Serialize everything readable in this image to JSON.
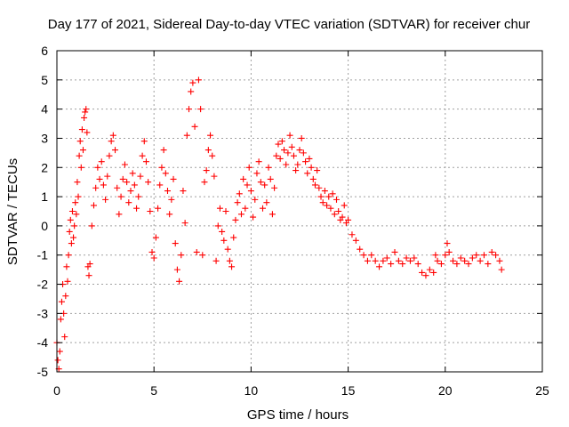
{
  "chart_data": {
    "type": "scatter",
    "title": "Day 177 of 2021, Sidereal Day-to-day VTEC variation (SDTVAR) for receiver chur",
    "xlabel": "GPS time / hours",
    "ylabel": "SDTVAR / TECUs",
    "xlim": [
      0,
      25
    ],
    "ylim": [
      -5,
      6
    ],
    "xticks": [
      "0",
      "5",
      "10",
      "15",
      "20",
      "25"
    ],
    "yticks": [
      "-5",
      "-4",
      "-3",
      "-2",
      "-1",
      "0",
      "1",
      "2",
      "3",
      "4",
      "5",
      "6"
    ],
    "grid": true,
    "marker": "+",
    "color": "#ff0000",
    "series": [
      {
        "name": "SDTVAR",
        "points": [
          [
            0.0,
            -4.0
          ],
          [
            0.05,
            -4.6
          ],
          [
            0.1,
            -4.9
          ],
          [
            0.15,
            -4.3
          ],
          [
            0.2,
            -3.2
          ],
          [
            0.25,
            -2.6
          ],
          [
            0.3,
            -2.0
          ],
          [
            0.35,
            -3.0
          ],
          [
            0.4,
            -3.8
          ],
          [
            0.45,
            -2.4
          ],
          [
            0.5,
            -1.4
          ],
          [
            0.55,
            -1.9
          ],
          [
            0.6,
            -1.0
          ],
          [
            0.65,
            -0.2
          ],
          [
            0.7,
            0.2
          ],
          [
            0.75,
            -0.6
          ],
          [
            0.8,
            0.5
          ],
          [
            0.85,
            -0.4
          ],
          [
            0.9,
            0.0
          ],
          [
            0.95,
            0.8
          ],
          [
            1.0,
            0.4
          ],
          [
            1.05,
            1.5
          ],
          [
            1.1,
            1.0
          ],
          [
            1.15,
            2.4
          ],
          [
            1.2,
            2.9
          ],
          [
            1.25,
            2.0
          ],
          [
            1.3,
            3.3
          ],
          [
            1.35,
            2.6
          ],
          [
            1.4,
            3.7
          ],
          [
            1.45,
            3.9
          ],
          [
            1.5,
            4.0
          ],
          [
            1.55,
            3.2
          ],
          [
            1.6,
            -1.4
          ],
          [
            1.65,
            -1.7
          ],
          [
            1.7,
            -1.3
          ],
          [
            1.8,
            0.0
          ],
          [
            1.9,
            0.7
          ],
          [
            2.0,
            1.3
          ],
          [
            2.1,
            2.0
          ],
          [
            2.2,
            1.6
          ],
          [
            2.3,
            2.2
          ],
          [
            2.4,
            1.4
          ],
          [
            2.5,
            0.9
          ],
          [
            2.6,
            1.7
          ],
          [
            2.7,
            2.4
          ],
          [
            2.8,
            2.9
          ],
          [
            2.9,
            3.1
          ],
          [
            3.0,
            2.6
          ],
          [
            3.1,
            1.3
          ],
          [
            3.2,
            0.4
          ],
          [
            3.3,
            1.0
          ],
          [
            3.4,
            1.6
          ],
          [
            3.5,
            2.1
          ],
          [
            3.6,
            1.5
          ],
          [
            3.7,
            0.8
          ],
          [
            3.8,
            1.2
          ],
          [
            3.9,
            1.8
          ],
          [
            4.0,
            1.4
          ],
          [
            4.1,
            0.6
          ],
          [
            4.2,
            1.0
          ],
          [
            4.3,
            1.7
          ],
          [
            4.4,
            2.4
          ],
          [
            4.5,
            2.9
          ],
          [
            4.6,
            2.2
          ],
          [
            4.7,
            1.5
          ],
          [
            4.8,
            0.5
          ],
          [
            4.9,
            -0.9
          ],
          [
            5.0,
            -1.1
          ],
          [
            5.1,
            -0.4
          ],
          [
            5.2,
            0.6
          ],
          [
            5.3,
            1.4
          ],
          [
            5.4,
            2.0
          ],
          [
            5.5,
            2.6
          ],
          [
            5.6,
            1.8
          ],
          [
            5.7,
            1.2
          ],
          [
            5.8,
            0.4
          ],
          [
            5.9,
            0.9
          ],
          [
            6.0,
            1.6
          ],
          [
            6.1,
            -0.6
          ],
          [
            6.2,
            -1.5
          ],
          [
            6.3,
            -1.9
          ],
          [
            6.4,
            -1.0
          ],
          [
            6.5,
            1.2
          ],
          [
            6.6,
            0.1
          ],
          [
            6.7,
            3.1
          ],
          [
            6.8,
            4.0
          ],
          [
            6.9,
            4.6
          ],
          [
            7.0,
            4.9
          ],
          [
            7.1,
            3.4
          ],
          [
            7.2,
            -0.9
          ],
          [
            7.3,
            5.0
          ],
          [
            7.4,
            4.0
          ],
          [
            7.5,
            -1.0
          ],
          [
            7.6,
            1.5
          ],
          [
            7.7,
            1.9
          ],
          [
            7.8,
            2.6
          ],
          [
            7.9,
            3.1
          ],
          [
            8.0,
            2.4
          ],
          [
            8.1,
            1.7
          ],
          [
            8.2,
            -1.2
          ],
          [
            8.3,
            0.0
          ],
          [
            8.4,
            0.6
          ],
          [
            8.5,
            -0.2
          ],
          [
            8.6,
            -0.5
          ],
          [
            8.7,
            0.5
          ],
          [
            8.8,
            -0.8
          ],
          [
            8.9,
            -1.2
          ],
          [
            9.0,
            -1.4
          ],
          [
            9.1,
            -0.4
          ],
          [
            9.2,
            0.2
          ],
          [
            9.3,
            0.8
          ],
          [
            9.4,
            1.1
          ],
          [
            9.5,
            0.4
          ],
          [
            9.6,
            1.6
          ],
          [
            9.7,
            0.6
          ],
          [
            9.8,
            1.4
          ],
          [
            9.9,
            2.0
          ],
          [
            10.0,
            1.2
          ],
          [
            10.1,
            0.3
          ],
          [
            10.2,
            0.9
          ],
          [
            10.3,
            1.8
          ],
          [
            10.4,
            2.2
          ],
          [
            10.5,
            1.5
          ],
          [
            10.6,
            0.6
          ],
          [
            10.7,
            1.4
          ],
          [
            10.8,
            0.8
          ],
          [
            10.9,
            2.0
          ],
          [
            11.0,
            1.6
          ],
          [
            11.1,
            0.4
          ],
          [
            11.2,
            1.3
          ],
          [
            11.3,
            2.4
          ],
          [
            11.4,
            2.8
          ],
          [
            11.5,
            2.3
          ],
          [
            11.6,
            2.9
          ],
          [
            11.7,
            2.6
          ],
          [
            11.8,
            2.1
          ],
          [
            11.9,
            2.5
          ],
          [
            12.0,
            3.1
          ],
          [
            12.1,
            2.7
          ],
          [
            12.2,
            2.4
          ],
          [
            12.3,
            1.9
          ],
          [
            12.4,
            2.1
          ],
          [
            12.5,
            2.6
          ],
          [
            12.6,
            3.0
          ],
          [
            12.7,
            2.5
          ],
          [
            12.8,
            2.2
          ],
          [
            12.9,
            1.8
          ],
          [
            13.0,
            2.3
          ],
          [
            13.1,
            2.0
          ],
          [
            13.2,
            1.6
          ],
          [
            13.3,
            1.4
          ],
          [
            13.4,
            1.9
          ],
          [
            13.5,
            1.3
          ],
          [
            13.6,
            1.0
          ],
          [
            13.7,
            0.8
          ],
          [
            13.8,
            1.2
          ],
          [
            13.9,
            0.7
          ],
          [
            14.0,
            1.0
          ],
          [
            14.1,
            0.6
          ],
          [
            14.2,
            1.1
          ],
          [
            14.3,
            0.4
          ],
          [
            14.4,
            0.9
          ],
          [
            14.5,
            0.5
          ],
          [
            14.6,
            0.2
          ],
          [
            14.7,
            0.3
          ],
          [
            14.8,
            0.7
          ],
          [
            14.9,
            0.1
          ],
          [
            15.0,
            0.2
          ],
          [
            15.2,
            -0.3
          ],
          [
            15.4,
            -0.5
          ],
          [
            15.6,
            -0.8
          ],
          [
            15.8,
            -1.0
          ],
          [
            16.0,
            -1.2
          ],
          [
            16.2,
            -1.0
          ],
          [
            16.4,
            -1.2
          ],
          [
            16.6,
            -1.4
          ],
          [
            16.8,
            -1.2
          ],
          [
            17.0,
            -1.1
          ],
          [
            17.2,
            -1.3
          ],
          [
            17.4,
            -0.9
          ],
          [
            17.6,
            -1.2
          ],
          [
            17.8,
            -1.3
          ],
          [
            18.0,
            -1.1
          ],
          [
            18.2,
            -1.2
          ],
          [
            18.4,
            -1.1
          ],
          [
            18.6,
            -1.3
          ],
          [
            18.8,
            -1.6
          ],
          [
            19.0,
            -1.7
          ],
          [
            19.2,
            -1.5
          ],
          [
            19.4,
            -1.6
          ],
          [
            19.5,
            -1.0
          ],
          [
            19.6,
            -1.2
          ],
          [
            19.8,
            -1.3
          ],
          [
            20.0,
            -1.0
          ],
          [
            20.1,
            -0.6
          ],
          [
            20.2,
            -0.9
          ],
          [
            20.4,
            -1.2
          ],
          [
            20.6,
            -1.3
          ],
          [
            20.8,
            -1.1
          ],
          [
            21.0,
            -1.2
          ],
          [
            21.2,
            -1.3
          ],
          [
            21.4,
            -1.1
          ],
          [
            21.6,
            -1.0
          ],
          [
            21.8,
            -1.2
          ],
          [
            22.0,
            -1.0
          ],
          [
            22.2,
            -1.3
          ],
          [
            22.4,
            -0.9
          ],
          [
            22.6,
            -1.0
          ],
          [
            22.8,
            -1.2
          ],
          [
            22.9,
            -1.5
          ]
        ]
      }
    ]
  }
}
